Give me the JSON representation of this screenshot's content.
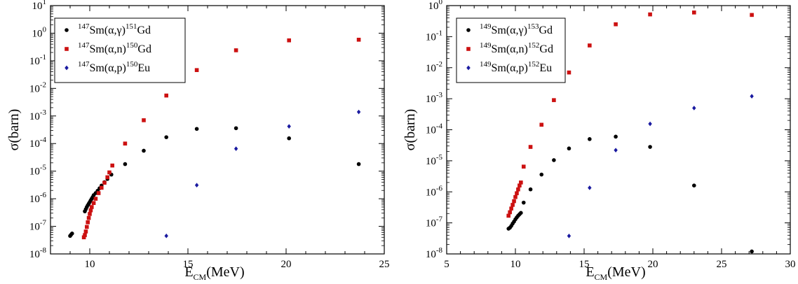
{
  "chart_data": [
    {
      "type": "scatter",
      "xlabel": "E",
      "xlabel_sub": "CM",
      "xlabel_unit": "(MeV)",
      "ylabel": "σ(barn)",
      "xlim": [
        8,
        25
      ],
      "ylim": [
        1e-08,
        10
      ],
      "yscale": "log",
      "x_ticks": [
        10,
        15,
        20,
        25
      ],
      "x_tick_labels": [
        "10",
        "15",
        "20",
        "25"
      ],
      "y_ticks": [
        1e-08,
        1e-07,
        1e-06,
        1e-05,
        0.0001,
        0.001,
        0.01,
        0.1,
        1,
        10
      ],
      "y_tick_labels": [
        {
          "base": "10",
          "exp": "-8"
        },
        {
          "base": "10",
          "exp": "-7"
        },
        {
          "base": "10",
          "exp": "-6"
        },
        {
          "base": "10",
          "exp": "-5"
        },
        {
          "base": "10",
          "exp": "-4"
        },
        {
          "base": "10",
          "exp": "-3"
        },
        {
          "base": "10",
          "exp": "-2"
        },
        {
          "base": "10",
          "exp": "-1"
        },
        {
          "base": "10",
          "exp": "0"
        },
        {
          "base": "10",
          "exp": "1"
        }
      ],
      "grid": false,
      "legend_position": "top-left",
      "series": [
        {
          "name": "147Sm(α,γ)151Gd",
          "legend": {
            "target_mass": "147",
            "target": "Sm(α,γ)",
            "product_mass": "151",
            "product": "Gd"
          },
          "marker": "circle",
          "color": "#000000",
          "points": [
            [
              9.0,
              4.5e-08
            ],
            [
              9.05,
              5e-08
            ],
            [
              9.1,
              5.5e-08
            ],
            [
              9.75,
              3.5e-07
            ],
            [
              9.8,
              4.2e-07
            ],
            [
              9.85,
              5e-07
            ],
            [
              9.9,
              5.8e-07
            ],
            [
              9.95,
              6.6e-07
            ],
            [
              10.0,
              7.6e-07
            ],
            [
              10.05,
              8.8e-07
            ],
            [
              10.1,
              1e-06
            ],
            [
              10.15,
              1.15e-06
            ],
            [
              10.2,
              1.35e-06
            ],
            [
              10.3,
              1.6e-06
            ],
            [
              10.4,
              1.95e-06
            ],
            [
              10.5,
              2.4e-06
            ],
            [
              10.6,
              3e-06
            ],
            [
              10.75,
              4e-06
            ],
            [
              10.9,
              5.2e-06
            ],
            [
              11.1,
              7.5e-06
            ],
            [
              11.8,
              1.8e-05
            ],
            [
              12.75,
              5.5e-05
            ],
            [
              13.9,
              0.00017
            ],
            [
              15.45,
              0.00034
            ],
            [
              17.45,
              0.00036
            ],
            [
              20.15,
              0.000155
            ],
            [
              23.7,
              1.8e-05
            ]
          ]
        },
        {
          "name": "147Sm(α,n)150Gd",
          "legend": {
            "target_mass": "147",
            "target": "Sm(α,n)",
            "product_mass": "150",
            "product": "Gd"
          },
          "marker": "square",
          "color": "#cc1111",
          "points": [
            [
              9.7,
              4e-08
            ],
            [
              9.75,
              4.8e-08
            ],
            [
              9.8,
              6.5e-08
            ],
            [
              9.85,
              9.5e-08
            ],
            [
              9.9,
              1.4e-07
            ],
            [
              9.95,
              2e-07
            ],
            [
              10.0,
              2.8e-07
            ],
            [
              10.05,
              3.8e-07
            ],
            [
              10.1,
              5e-07
            ],
            [
              10.2,
              7e-07
            ],
            [
              10.3,
              1e-06
            ],
            [
              10.45,
              1.6e-06
            ],
            [
              10.6,
              2.5e-06
            ],
            [
              10.75,
              3.8e-06
            ],
            [
              10.9,
              6e-06
            ],
            [
              11.0,
              9e-06
            ],
            [
              11.15,
              1.6e-05
            ],
            [
              11.8,
              0.0001
            ],
            [
              12.75,
              0.0007
            ],
            [
              13.9,
              0.0055
            ],
            [
              15.45,
              0.046
            ],
            [
              17.45,
              0.24
            ],
            [
              20.15,
              0.55
            ],
            [
              23.7,
              0.58
            ]
          ]
        },
        {
          "name": "147Sm(α,p)150Eu",
          "legend": {
            "target_mass": "147",
            "target": "Sm(α,p)",
            "product_mass": "150",
            "product": "Eu"
          },
          "marker": "diamond",
          "color": "#1a1aa0",
          "points": [
            [
              13.9,
              4.5e-08
            ],
            [
              15.45,
              3.1e-06
            ],
            [
              17.45,
              6.5e-05
            ],
            [
              20.15,
              0.00042
            ],
            [
              23.7,
              0.0014
            ]
          ]
        }
      ]
    },
    {
      "type": "scatter",
      "xlabel": "E",
      "xlabel_sub": "CM",
      "xlabel_unit": "(MeV)",
      "ylabel": "σ(barn)",
      "xlim": [
        5,
        30
      ],
      "ylim": [
        1e-08,
        1
      ],
      "yscale": "log",
      "x_ticks": [
        5,
        10,
        15,
        20,
        25,
        30
      ],
      "x_tick_labels": [
        "5",
        "10",
        "15",
        "20",
        "25",
        "30"
      ],
      "y_ticks": [
        1e-08,
        1e-07,
        1e-06,
        1e-05,
        0.0001,
        0.001,
        0.01,
        0.1,
        1
      ],
      "y_tick_labels": [
        {
          "base": "10",
          "exp": "-8"
        },
        {
          "base": "10",
          "exp": "-7"
        },
        {
          "base": "10",
          "exp": "-6"
        },
        {
          "base": "10",
          "exp": "-5"
        },
        {
          "base": "10",
          "exp": "-4"
        },
        {
          "base": "10",
          "exp": "-3"
        },
        {
          "base": "10",
          "exp": "-2"
        },
        {
          "base": "10",
          "exp": "-1"
        },
        {
          "base": "10",
          "exp": "0"
        }
      ],
      "grid": false,
      "legend_position": "top-left",
      "series": [
        {
          "name": "149Sm(α,γ)153Gd",
          "legend": {
            "target_mass": "149",
            "target": "Sm(α,γ)",
            "product_mass": "153",
            "product": "Gd"
          },
          "marker": "circle",
          "color": "#000000",
          "points": [
            [
              9.5,
              6.5e-08
            ],
            [
              9.6,
              7e-08
            ],
            [
              9.7,
              8e-08
            ],
            [
              9.8,
              9.5e-08
            ],
            [
              9.9,
              1.1e-07
            ],
            [
              10.0,
              1.3e-07
            ],
            [
              10.1,
              1.5e-07
            ],
            [
              10.2,
              1.7e-07
            ],
            [
              10.3,
              1.9e-07
            ],
            [
              10.4,
              2.1e-07
            ],
            [
              10.6,
              4.5e-07
            ],
            [
              11.1,
              1.2e-06
            ],
            [
              11.9,
              3.6e-06
            ],
            [
              12.8,
              1.05e-05
            ],
            [
              13.9,
              2.5e-05
            ],
            [
              15.4,
              5e-05
            ],
            [
              17.3,
              6e-05
            ],
            [
              19.8,
              2.8e-05
            ],
            [
              23.0,
              1.6e-06
            ],
            [
              27.2,
              1.2e-08
            ]
          ]
        },
        {
          "name": "149Sm(α,n)152Gd",
          "legend": {
            "target_mass": "149",
            "target": "Sm(α,n)",
            "product_mass": "152",
            "product": "Gd"
          },
          "marker": "square",
          "color": "#cc1111",
          "points": [
            [
              9.5,
              1.7e-07
            ],
            [
              9.6,
              2.2e-07
            ],
            [
              9.7,
              2.9e-07
            ],
            [
              9.8,
              3.8e-07
            ],
            [
              9.9,
              5e-07
            ],
            [
              10.0,
              6.8e-07
            ],
            [
              10.1,
              9e-07
            ],
            [
              10.2,
              1.2e-06
            ],
            [
              10.3,
              1.6e-06
            ],
            [
              10.4,
              2e-06
            ],
            [
              10.6,
              6.5e-06
            ],
            [
              11.1,
              2.8e-05
            ],
            [
              11.9,
              0.000145
            ],
            [
              12.8,
              0.0009
            ],
            [
              13.9,
              0.007
            ],
            [
              15.4,
              0.052
            ],
            [
              17.3,
              0.25
            ],
            [
              19.8,
              0.52
            ],
            [
              23.0,
              0.6
            ],
            [
              27.2,
              0.5
            ]
          ]
        },
        {
          "name": "149Sm(α,p)152Eu",
          "legend": {
            "target_mass": "149",
            "target": "Sm(α,p)",
            "product_mass": "152",
            "product": "Eu"
          },
          "marker": "diamond",
          "color": "#1a1aa0",
          "points": [
            [
              13.9,
              3.8e-08
            ],
            [
              15.4,
              1.35e-06
            ],
            [
              17.3,
              2.2e-05
            ],
            [
              19.8,
              0.000155
            ],
            [
              23.0,
              0.0005
            ],
            [
              27.2,
              0.0012
            ]
          ]
        }
      ]
    }
  ]
}
